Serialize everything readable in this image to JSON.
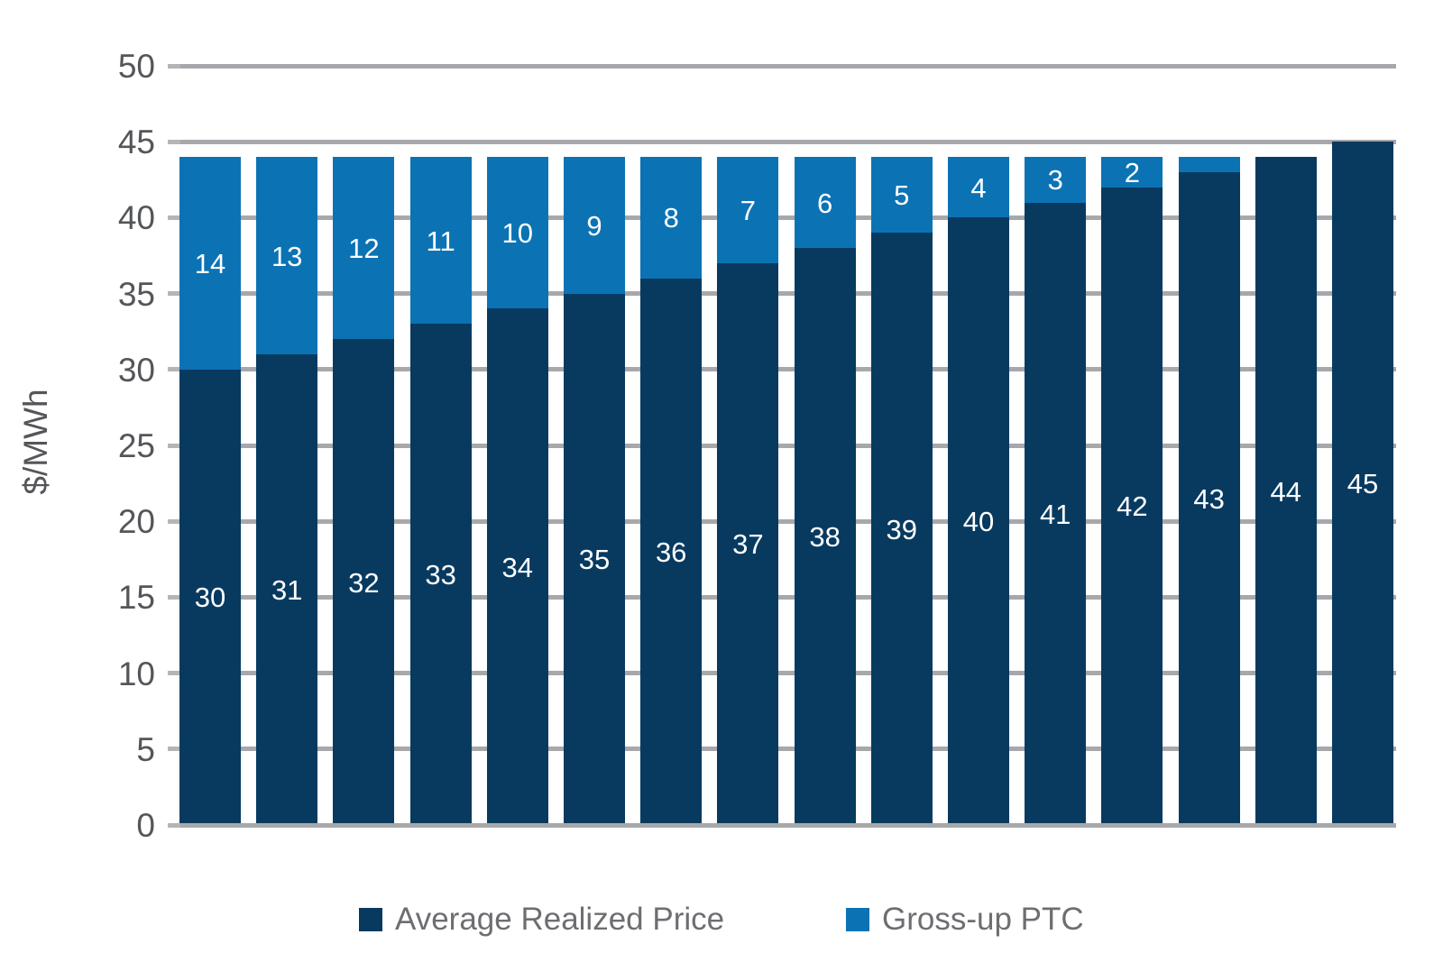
{
  "chart_data": {
    "type": "bar",
    "stacked": true,
    "title": "",
    "xlabel": "",
    "ylabel": "$/MWh",
    "ylim": [
      0,
      50
    ],
    "yticks": [
      0,
      5,
      10,
      15,
      20,
      25,
      30,
      35,
      40,
      45,
      50
    ],
    "grid": true,
    "legend_position": "bottom",
    "series": [
      {
        "name": "Average Realized Price",
        "color": "#083a60",
        "values": [
          30,
          31,
          32,
          33,
          34,
          35,
          36,
          37,
          38,
          39,
          40,
          41,
          42,
          43,
          44,
          45
        ]
      },
      {
        "name": "Gross-up PTC",
        "color": "#0b73b4",
        "values": [
          14,
          13,
          12,
          11,
          10,
          9,
          8,
          7,
          6,
          5,
          4,
          3,
          2,
          1,
          0,
          0
        ]
      }
    ],
    "bar_label_color": "#ffffff",
    "min_segment_label_value": 2
  },
  "colors": {
    "background": "#ffffff",
    "gridline": "#a6a8ab",
    "axis_text": "#545659",
    "legend_text": "#6d6e71"
  }
}
